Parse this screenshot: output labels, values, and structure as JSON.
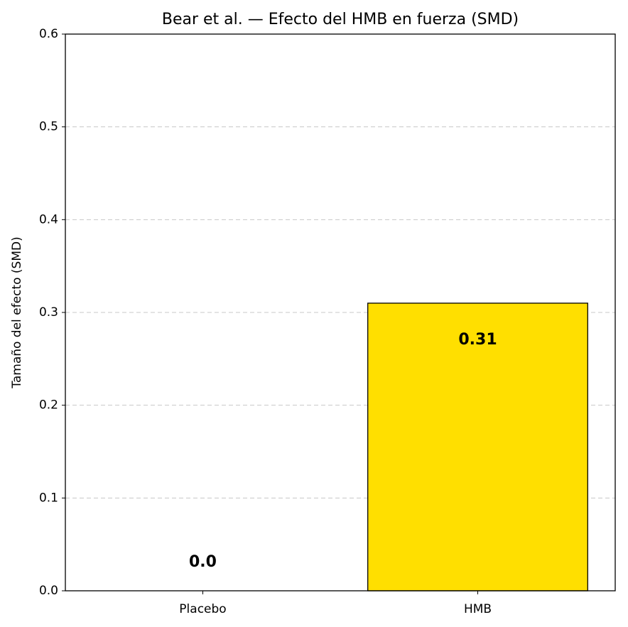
{
  "chart_data": {
    "type": "bar",
    "title": "Bear et al. — Efecto del HMB en fuerza (SMD)",
    "y_label": "Tamaño del efecto (SMD)",
    "categories": [
      "Placebo",
      "HMB"
    ],
    "values": [
      0,
      0.31
    ],
    "value_labels": [
      "0.0",
      "0.31"
    ],
    "colors": [
      "#cccccc",
      "#ffdf00"
    ],
    "ylim": [
      0,
      0.6
    ],
    "yticks": [
      {
        "value": 0,
        "label": "0.0"
      },
      0.1,
      0.2,
      0.3,
      0.4,
      0.5,
      0.6
    ],
    "grid": true
  }
}
